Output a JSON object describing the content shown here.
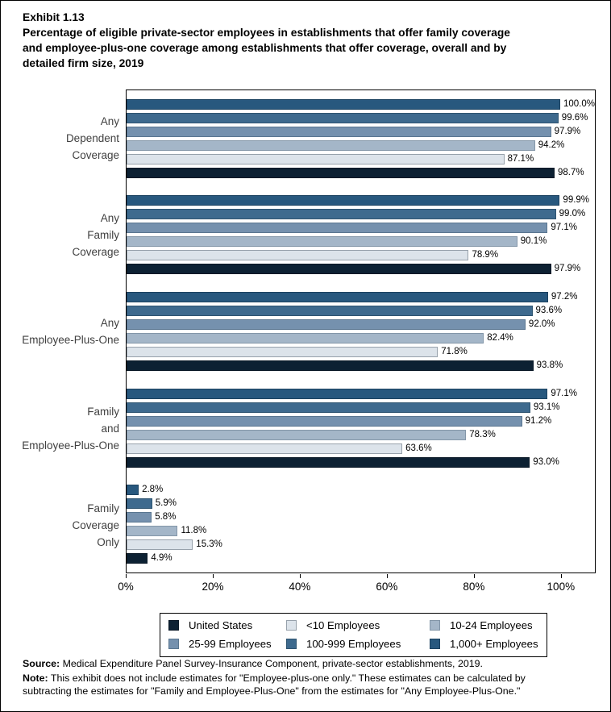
{
  "title": {
    "exhibit": "Exhibit 1.13",
    "lines": [
      "Percentage of eligible private-sector employees in establishments that offer family coverage",
      "and employee-plus-one coverage among establishments that offer coverage, overall and by",
      "detailed firm size, 2019"
    ]
  },
  "chart_data": {
    "type": "bar",
    "orientation": "horizontal",
    "title": "Percentage of eligible private-sector employees in establishments that offer family coverage and employee-plus-one coverage among establishments that offer coverage, overall and by detailed firm size, 2019",
    "xlabel": "",
    "ylabel": "",
    "axis": {
      "max": 108,
      "tick_values": [
        0,
        20,
        40,
        60,
        80,
        100
      ],
      "tick_labels": [
        "0%",
        "20%",
        "40%",
        "60%",
        "80%",
        "100%"
      ]
    },
    "grid": false,
    "value_label_format": "one-decimal-percent",
    "categories": [
      {
        "name": "Any Dependent Coverage",
        "lines": [
          "Any",
          "Dependent",
          "Coverage"
        ]
      },
      {
        "name": "Any Family Coverage",
        "lines": [
          "Any",
          "Family",
          "Coverage"
        ]
      },
      {
        "name": "Any Employee-Plus-One",
        "lines": [
          "Any",
          "Employee-Plus-One"
        ]
      },
      {
        "name": "Family and Employee-Plus-One",
        "lines": [
          "Family",
          "and",
          "Employee-Plus-One"
        ]
      },
      {
        "name": "Family Coverage Only",
        "lines": [
          "Family",
          "Coverage",
          "Only"
        ]
      }
    ],
    "series_top_to_bottom": [
      {
        "name": "1,000+ Employees",
        "color": "#28587E",
        "border": "#1C4260",
        "values": [
          100.0,
          99.9,
          97.2,
          97.1,
          2.8
        ]
      },
      {
        "name": "100-999 Employees",
        "color": "#3E6A8E",
        "border": "#2E5470",
        "values": [
          99.6,
          99.0,
          93.6,
          93.1,
          5.9
        ]
      },
      {
        "name": "25-99 Employees",
        "color": "#7591AE",
        "border": "#5A7690",
        "values": [
          97.9,
          97.1,
          92.0,
          91.2,
          5.8
        ]
      },
      {
        "name": "10-24 Employees",
        "color": "#A4B6C8",
        "border": "#8396A8",
        "values": [
          94.2,
          90.1,
          82.4,
          78.3,
          11.8
        ]
      },
      {
        "name": "<10 Employees",
        "color": "#DCE3EA",
        "border": "#97A1AB",
        "values": [
          87.1,
          78.9,
          71.8,
          63.6,
          15.3
        ]
      },
      {
        "name": "United States",
        "color": "#0D2133",
        "border": "#0A1826",
        "values": [
          98.7,
          97.9,
          93.8,
          93.0,
          4.9
        ]
      }
    ],
    "legend_position": "bottom"
  },
  "legend": {
    "order": [
      "United States",
      "<10 Employees",
      "10-24 Employees",
      "25-99 Employees",
      "100-999 Employees",
      "1,000+ Employees"
    ]
  },
  "footer": {
    "source_label": "Source:",
    "source_text": " Medical Expenditure Panel Survey-Insurance Component, private-sector establishments, 2019.",
    "note_label": "Note:",
    "note_text": " This exhibit does not include estimates for \"Employee-plus-one only.\" These estimates can be calculated by\nsubtracting the estimates for \"Family and Employee-Plus-One\" from the estimates for \"Any Employee-Plus-One.\""
  }
}
